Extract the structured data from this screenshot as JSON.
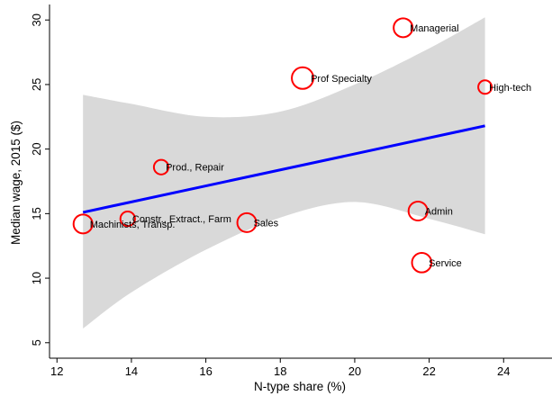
{
  "chart_data": {
    "type": "scatter",
    "title": "",
    "xlabel": "N-type share (%)",
    "ylabel": "Median wage, 2015 ($)",
    "xlim": [
      11.8,
      25.3
    ],
    "ylim": [
      3.8,
      31.2
    ],
    "xticks": [
      12,
      14,
      16,
      18,
      20,
      22,
      24
    ],
    "yticks": [
      5,
      10,
      15,
      20,
      25,
      30
    ],
    "grid": false,
    "points": [
      {
        "label": "Managerial",
        "x": 21.3,
        "y": 29.4,
        "weight": 1.0
      },
      {
        "label": "Prof Specialty",
        "x": 18.6,
        "y": 25.5,
        "weight": 1.25
      },
      {
        "label": "High-tech",
        "x": 23.5,
        "y": 24.8,
        "weight": 0.5
      },
      {
        "label": "Prod., Repair",
        "x": 14.8,
        "y": 18.6,
        "weight": 0.6
      },
      {
        "label": "Admin",
        "x": 21.7,
        "y": 15.2,
        "weight": 1.0
      },
      {
        "label": "Constr., Extract., Farm",
        "x": 13.9,
        "y": 14.6,
        "weight": 0.6
      },
      {
        "label": "Sales",
        "x": 17.1,
        "y": 14.3,
        "weight": 1.0
      },
      {
        "label": "Machinists, Transp.",
        "x": 12.7,
        "y": 14.2,
        "weight": 1.0
      },
      {
        "label": "Service",
        "x": 21.8,
        "y": 11.2,
        "weight": 1.05
      }
    ],
    "fit_line": {
      "x": [
        12.7,
        23.5
      ],
      "y": [
        15.1,
        21.8
      ],
      "color": "#0000ff"
    },
    "confidence_band": {
      "x": [
        12.7,
        14,
        16,
        18,
        20,
        22,
        23.5
      ],
      "upper": [
        24.2,
        23.5,
        22.5,
        22.9,
        25.0,
        27.8,
        30.2
      ],
      "lower": [
        6.1,
        8.9,
        12.2,
        14.7,
        15.9,
        14.6,
        13.4
      ],
      "color": "#d9d9d9"
    },
    "marker_color": "#ff0000"
  }
}
